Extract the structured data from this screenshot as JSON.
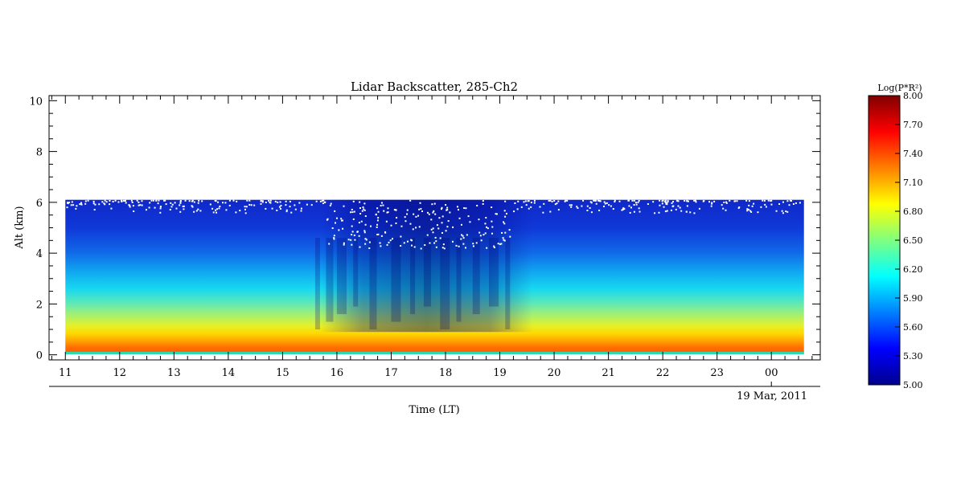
{
  "chart_data": {
    "type": "heatmap",
    "title": "Lidar Backscatter, 285-Ch2",
    "xlabel": "Time (LT)",
    "ylabel": "Alt (km)",
    "date_label": "19 Mar, 2011",
    "x_ticks": [
      "11",
      "12",
      "13",
      "14",
      "15",
      "16",
      "17",
      "18",
      "19",
      "20",
      "21",
      "22",
      "23",
      "00"
    ],
    "x_range_hours": [
      10.7,
      24.9
    ],
    "data_time_range_hours": [
      11.0,
      24.6
    ],
    "y_ticks": [
      0,
      2,
      4,
      6,
      8,
      10
    ],
    "y_range": [
      -0.2,
      10.2
    ],
    "data_alt_range_km": [
      0.05,
      6.1
    ],
    "colorbar": {
      "label": "Log(P*R²)",
      "min": 5.0,
      "max": 8.0,
      "ticks": [
        "5.00",
        "5.30",
        "5.60",
        "5.90",
        "6.20",
        "6.50",
        "6.80",
        "7.10",
        "7.40",
        "7.70",
        "8.00"
      ],
      "colormap": "jet"
    },
    "profile_summary": [
      {
        "time": "11-14",
        "boundary_layer_top_km": 1.0,
        "value_near_surface": 7.6,
        "value_at_6km": 5.3
      },
      {
        "time": "16-19",
        "boundary_layer_top_km": 0.6,
        "value_near_surface": 7.5,
        "value_at_6km": 5.0,
        "note": "dark streaks; missing data above 4 km"
      },
      {
        "time": "20-00",
        "boundary_layer_top_km": 1.1,
        "value_near_surface": 7.6,
        "value_at_6km": 5.3
      }
    ]
  }
}
